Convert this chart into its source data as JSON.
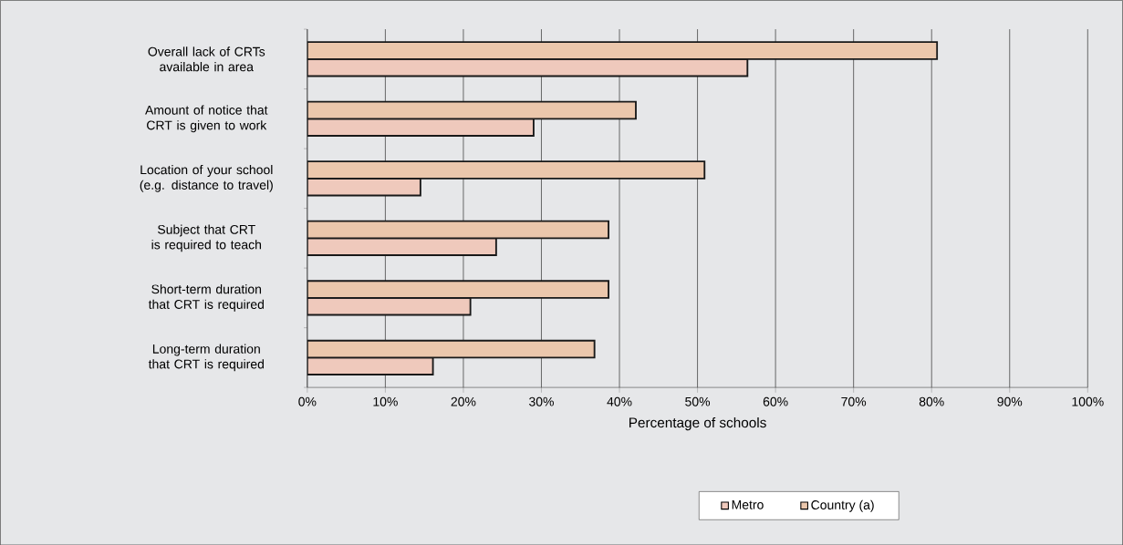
{
  "chart_data": {
    "type": "bar",
    "orientation": "horizontal",
    "xlabel": "Percentage of schools",
    "categories": [
      "Overall lack of CRTs available in area",
      "Amount of notice that CRT is given to work",
      "Location of your school (e.g. distance to travel)",
      "Subject that CRT is required to teach",
      "Short-term duration that CRT is required",
      "Long-term duration that CRT is required"
    ],
    "series": [
      {
        "name": "Metro",
        "color": "#efc9bc",
        "values": [
          56.4,
          29.0,
          14.5,
          24.2,
          20.9,
          16.1
        ]
      },
      {
        "name": "Country (a)",
        "color": "#ebc7ac",
        "values": [
          80.7,
          42.1,
          50.9,
          38.6,
          38.6,
          36.8
        ]
      }
    ],
    "xlim": [
      0,
      100
    ],
    "xticks": [
      {
        "value": 0,
        "label": "0%"
      },
      {
        "value": 10,
        "label": "10%"
      },
      {
        "value": 20,
        "label": "20%"
      },
      {
        "value": 30,
        "label": "30%"
      },
      {
        "value": 40,
        "label": "40%"
      },
      {
        "value": 50,
        "label": "50%"
      },
      {
        "value": 60,
        "label": "60%"
      },
      {
        "value": 70,
        "label": "70%"
      },
      {
        "value": 80,
        "label": "80%"
      },
      {
        "value": 90,
        "label": "90%"
      },
      {
        "value": 100,
        "label": "100%"
      }
    ],
    "grid": "x",
    "legend": "bottom"
  }
}
